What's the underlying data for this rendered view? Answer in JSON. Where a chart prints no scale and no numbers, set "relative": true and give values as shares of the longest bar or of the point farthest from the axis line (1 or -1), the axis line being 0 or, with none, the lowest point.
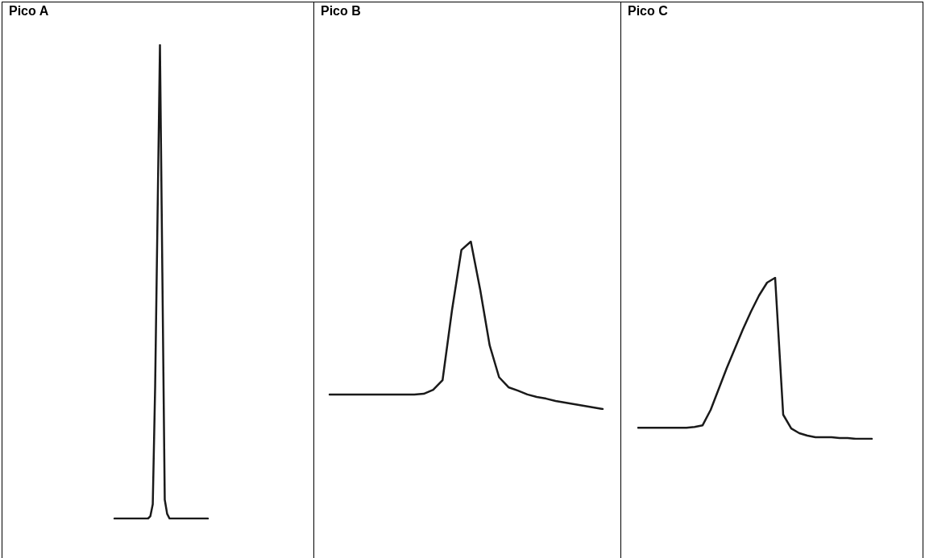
{
  "chart_data": [
    {
      "type": "line",
      "title": "Pico A",
      "relative": true,
      "legend": false,
      "categories": [
        null,
        null,
        null,
        null,
        null,
        null,
        null,
        null,
        null,
        null,
        null,
        null,
        null,
        null,
        null,
        null,
        null,
        null,
        null,
        null,
        null,
        null,
        null,
        null,
        null,
        null,
        null,
        null,
        null,
        null,
        null,
        null,
        null,
        null,
        null,
        null,
        null,
        null,
        null,
        null
      ],
      "series": [
        {
          "color": "#1a1a1a",
          "values": [
            0,
            0,
            0,
            0,
            0,
            0,
            0,
            0,
            0,
            0,
            0,
            0,
            0,
            0,
            0,
            0.005,
            0.03,
            0.28,
            0.64,
            1,
            0.52,
            0.04,
            0.01,
            0,
            0,
            0,
            0,
            0,
            0,
            0,
            0,
            0,
            0,
            0,
            0,
            0,
            0,
            0,
            0,
            0
          ]
        }
      ]
    },
    {
      "type": "line",
      "title": "Pico B",
      "relative": true,
      "legend": false,
      "categories": [
        null,
        null,
        null,
        null,
        null,
        null,
        null,
        null,
        null,
        null,
        null,
        null,
        null,
        null,
        null,
        null,
        null,
        null,
        null,
        null,
        null,
        null,
        null,
        null,
        null,
        null,
        null,
        null,
        null,
        null
      ],
      "series": [
        {
          "color": "#1a1a1a",
          "values": [
            0.087,
            0.087,
            0.087,
            0.087,
            0.087,
            0.087,
            0.087,
            0.087,
            0.087,
            0.087,
            0.091,
            0.115,
            0.173,
            0.59,
            0.95,
            1,
            0.71,
            0.38,
            0.19,
            0.13,
            0.11,
            0.087,
            0.072,
            0.062,
            0.048,
            0.038,
            0.029,
            0.019,
            0.01,
            0
          ]
        }
      ]
    },
    {
      "type": "line",
      "title": "Pico C",
      "relative": true,
      "legend": false,
      "categories": [
        null,
        null,
        null,
        null,
        null,
        null,
        null,
        null,
        null,
        null,
        null,
        null,
        null,
        null,
        null,
        null,
        null,
        null,
        null,
        null,
        null,
        null,
        null,
        null,
        null,
        null,
        null,
        null,
        null,
        null
      ],
      "series": [
        {
          "color": "#1a1a1a",
          "values": [
            0.069,
            0.069,
            0.069,
            0.069,
            0.069,
            0.069,
            0.069,
            0.074,
            0.084,
            0.18,
            0.31,
            0.44,
            0.56,
            0.68,
            0.79,
            0.89,
            0.97,
            1,
            0.15,
            0.064,
            0.035,
            0.02,
            0.01,
            0.01,
            0.01,
            0.005,
            0.005,
            0,
            0,
            0
          ]
        }
      ]
    }
  ]
}
